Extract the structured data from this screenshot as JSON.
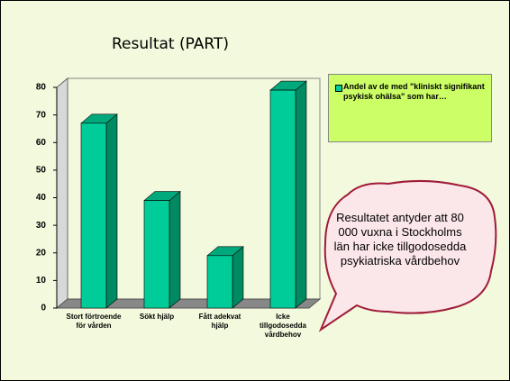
{
  "chart_data": {
    "type": "bar",
    "title": "Resultat (PART)",
    "categories": [
      "Stort förtroende för vården",
      "Sökt hjälp",
      "Fått adekvat hjälp",
      "Icke tillgodosedda vårdbehov"
    ],
    "series": [
      {
        "name": "Andel av de med \"kliniskt signifikant psykisk ohälsa\" som har…",
        "color": "#00cc99",
        "values": [
          67,
          39,
          19,
          79
        ]
      }
    ],
    "ylim": [
      0,
      80
    ],
    "yticks": [
      0,
      10,
      20,
      30,
      40,
      50,
      60,
      70,
      80
    ],
    "grid": false,
    "legend": "right",
    "annotations": [
      "Resultatet antyder att 80 000 vuxna i Stockholms län har icke tillgodosedda psykiatriska vårdbehov"
    ]
  }
}
